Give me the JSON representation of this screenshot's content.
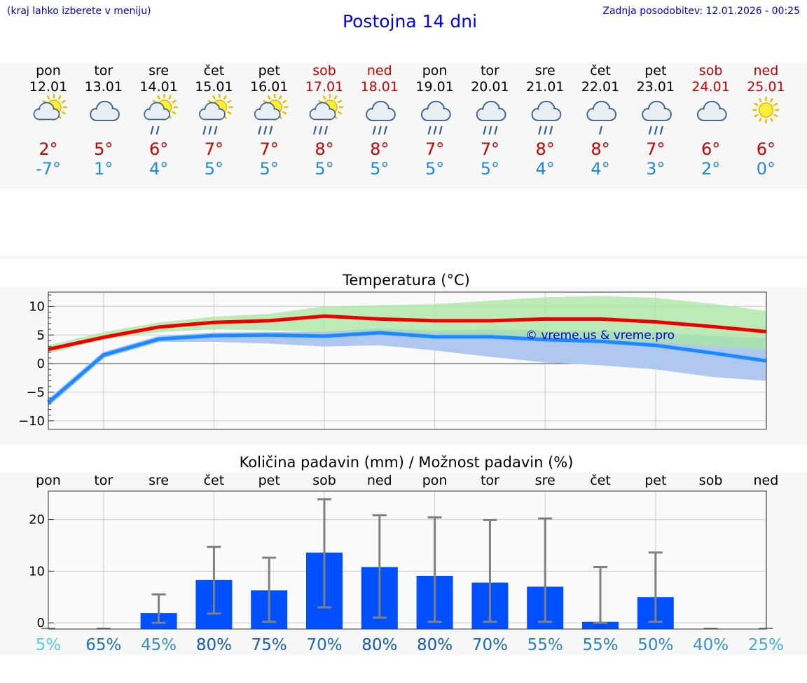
{
  "header": {
    "hint": "(kraj lahko izberete v meniju)",
    "title": "Postojna 14 dni",
    "updated": "Zadnja posodobitev: 12.01.2026 - 00:25"
  },
  "days": [
    {
      "name": "pon",
      "date": "12.01",
      "icon": "sun-cloud-icon",
      "max": "2°",
      "min": "-7°",
      "weekend": false
    },
    {
      "name": "tor",
      "date": "13.01",
      "icon": "cloud-icon",
      "max": "5°",
      "min": "1°",
      "weekend": false
    },
    {
      "name": "sre",
      "date": "14.01",
      "icon": "sun-cloud-light-rain-icon",
      "max": "6°",
      "min": "4°",
      "weekend": false
    },
    {
      "name": "čet",
      "date": "15.01",
      "icon": "sun-cloud-rain-icon",
      "max": "7°",
      "min": "5°",
      "weekend": false
    },
    {
      "name": "pet",
      "date": "16.01",
      "icon": "sun-cloud-rain-icon",
      "max": "7°",
      "min": "5°",
      "weekend": false
    },
    {
      "name": "sob",
      "date": "17.01",
      "icon": "sun-cloud-rain-icon",
      "max": "8°",
      "min": "5°",
      "weekend": true
    },
    {
      "name": "ned",
      "date": "18.01",
      "icon": "cloud-rain-icon",
      "max": "8°",
      "min": "5°",
      "weekend": true
    },
    {
      "name": "pon",
      "date": "19.01",
      "icon": "cloud-rain-icon",
      "max": "7°",
      "min": "5°",
      "weekend": false
    },
    {
      "name": "tor",
      "date": "20.01",
      "icon": "cloud-rain-icon",
      "max": "7°",
      "min": "5°",
      "weekend": false
    },
    {
      "name": "sre",
      "date": "21.01",
      "icon": "cloud-rain-icon",
      "max": "8°",
      "min": "4°",
      "weekend": false
    },
    {
      "name": "čet",
      "date": "22.01",
      "icon": "cloud-light-rain-icon",
      "max": "8°",
      "min": "4°",
      "weekend": false
    },
    {
      "name": "pet",
      "date": "23.01",
      "icon": "cloud-rain-icon",
      "max": "7°",
      "min": "3°",
      "weekend": false
    },
    {
      "name": "sob",
      "date": "24.01",
      "icon": "cloud-icon",
      "max": "6°",
      "min": "2°",
      "weekend": true
    },
    {
      "name": "ned",
      "date": "25.01",
      "icon": "sun-icon",
      "max": "6°",
      "min": "0°",
      "weekend": true
    }
  ],
  "colors": {
    "max_line": "#ee0000",
    "min_line": "#1e88ff",
    "max_band": "#a8e6a0",
    "min_band": "#b0c8f0",
    "overlap_band": "#7fc0a0",
    "bar": "#0050ff",
    "whisker": "#808080",
    "grid": "#cccccc"
  },
  "chart_data": [
    {
      "type": "line",
      "title": "Temperatura (°C)",
      "ylim": [
        -11.5,
        12.5
      ],
      "yticks": [
        "10",
        "5",
        "0",
        "−5",
        "−10"
      ],
      "ytick_values": [
        10,
        5,
        0,
        -5,
        -10
      ],
      "x": [
        0,
        1,
        2,
        3,
        4,
        5,
        6,
        7,
        8,
        9,
        10,
        11,
        12,
        13
      ],
      "series": [
        {
          "name": "max",
          "values": [
            2.5,
            4.6,
            6.4,
            7.2,
            7.5,
            8.3,
            7.8,
            7.5,
            7.5,
            7.8,
            7.8,
            7.3,
            6.5,
            5.6
          ],
          "band_low": [
            1.8,
            4.2,
            5.5,
            6.0,
            5.8,
            5.5,
            5.5,
            5.2,
            4.5,
            4.2,
            4.0,
            3.8,
            3.0,
            2.5
          ],
          "band_high": [
            3.2,
            5.5,
            7.2,
            8.2,
            8.7,
            10.0,
            10.2,
            10.4,
            11.0,
            11.6,
            11.8,
            11.5,
            10.5,
            9.2
          ]
        },
        {
          "name": "min",
          "values": [
            -6.8,
            1.5,
            4.3,
            4.9,
            5.0,
            4.8,
            5.4,
            4.7,
            4.7,
            4.2,
            3.9,
            3.2,
            1.9,
            0.5
          ],
          "band_low": [
            -7.5,
            1.0,
            3.8,
            3.8,
            3.5,
            3.0,
            3.2,
            2.3,
            1.2,
            0.2,
            -0.3,
            -1.0,
            -2.3,
            -3.0
          ],
          "band_high": [
            -6.2,
            2.0,
            4.8,
            5.4,
            5.5,
            5.6,
            6.2,
            5.8,
            6.0,
            5.8,
            5.8,
            5.5,
            4.8,
            4.5
          ]
        }
      ],
      "watermark": "© vreme.us & vreme.pro"
    },
    {
      "type": "bar",
      "title": "Količina padavin (mm) / Možnost padavin (%)",
      "ylim": [
        -1.2,
        25.5
      ],
      "yticks": [
        "20",
        "10",
        "0"
      ],
      "ytick_values": [
        20,
        10,
        0
      ],
      "categories": [
        "pon",
        "tor",
        "sre",
        "čet",
        "pet",
        "sob",
        "ned",
        "pon",
        "tor",
        "sre",
        "čet",
        "pet",
        "sob",
        "ned"
      ],
      "values": [
        0,
        0,
        1.9,
        8.3,
        6.3,
        13.6,
        10.8,
        9.1,
        7.8,
        7.0,
        0.2,
        5.0,
        0,
        0
      ],
      "err_low": [
        0,
        0,
        0,
        1.8,
        0.2,
        3.0,
        1.0,
        0.2,
        0.2,
        0.2,
        0,
        0.2,
        0,
        0
      ],
      "err_high": [
        0,
        0,
        5.5,
        14.7,
        12.6,
        23.9,
        20.8,
        20.4,
        19.9,
        20.2,
        10.8,
        13.6,
        0,
        0
      ],
      "chance": [
        "5%",
        "65%",
        "45%",
        "80%",
        "75%",
        "70%",
        "80%",
        "80%",
        "70%",
        "55%",
        "55%",
        "50%",
        "40%",
        "25%"
      ],
      "chance_values": [
        5,
        65,
        45,
        80,
        75,
        70,
        80,
        80,
        70,
        55,
        55,
        50,
        40,
        25
      ]
    }
  ]
}
